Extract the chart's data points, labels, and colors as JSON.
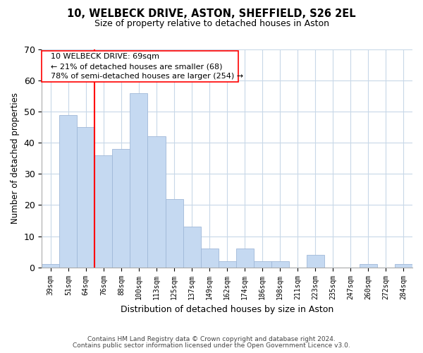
{
  "title": "10, WELBECK DRIVE, ASTON, SHEFFIELD, S26 2EL",
  "subtitle": "Size of property relative to detached houses in Aston",
  "xlabel": "Distribution of detached houses by size in Aston",
  "ylabel": "Number of detached properties",
  "bar_labels": [
    "39sqm",
    "51sqm",
    "64sqm",
    "76sqm",
    "88sqm",
    "100sqm",
    "113sqm",
    "125sqm",
    "137sqm",
    "149sqm",
    "162sqm",
    "174sqm",
    "186sqm",
    "198sqm",
    "211sqm",
    "223sqm",
    "235sqm",
    "247sqm",
    "260sqm",
    "272sqm",
    "284sqm"
  ],
  "bar_values": [
    1,
    49,
    45,
    36,
    38,
    56,
    42,
    22,
    13,
    6,
    2,
    6,
    2,
    2,
    0,
    4,
    0,
    0,
    1,
    0,
    1
  ],
  "bar_color": "#c5d9f1",
  "bar_edge_color": "#a0b8d8",
  "vline_color": "red",
  "vline_index": 2,
  "ylim": [
    0,
    70
  ],
  "yticks": [
    0,
    10,
    20,
    30,
    40,
    50,
    60,
    70
  ],
  "annotation_line1": "10 WELBECK DRIVE: 69sqm",
  "annotation_line2": "← 21% of detached houses are smaller (68)",
  "annotation_line3": "78% of semi-detached houses are larger (254) →",
  "footer_line1": "Contains HM Land Registry data © Crown copyright and database right 2024.",
  "footer_line2": "Contains public sector information licensed under the Open Government Licence v3.0.",
  "background_color": "#ffffff",
  "grid_color": "#c8d8e8"
}
